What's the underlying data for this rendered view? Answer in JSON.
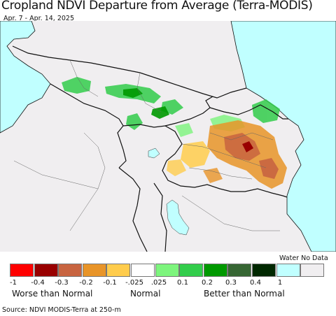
{
  "title": "Cropland NDVI Departure from Average (Terra-MODIS)",
  "subtitle": "Apr. 7 - Apr. 14, 2025",
  "legend": {
    "top_labels": "Water No Data",
    "colors": [
      "#ff0000",
      "#990000",
      "#c86440",
      "#e89428",
      "#ffcc4c",
      "#ffffff",
      "#7df57d",
      "#32cd4b",
      "#009900",
      "#366633",
      "#002800",
      "#c0ffff",
      "#f0eef0"
    ],
    "ticks": [
      "-1",
      "-0.4",
      "-0.3",
      "-0.2",
      "-0.1",
      "-.025",
      ".025",
      "0.1",
      "0.2",
      "0.3",
      "0.4",
      "1"
    ],
    "captions": {
      "worse": "Worse than Normal",
      "normal": "Normal",
      "better": "Better than Normal"
    }
  },
  "source": "Source: NDVI MODIS-Terra at 250-m"
}
